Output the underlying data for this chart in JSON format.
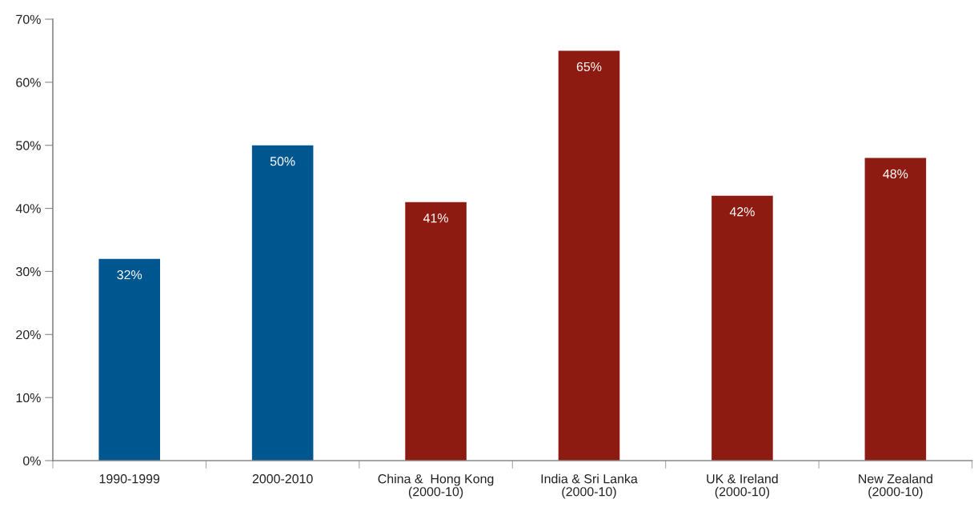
{
  "chart_data": {
    "type": "bar",
    "categories": [
      "1990-1999",
      "2000-2010",
      "China &  Hong Kong\n(2000-10)",
      "India & Sri Lanka\n(2000-10)",
      "UK & Ireland\n(2000-10)",
      "New Zealand\n(2000-10)"
    ],
    "values": [
      32,
      50,
      41,
      65,
      42,
      48
    ],
    "colors": [
      "#00568f",
      "#00568f",
      "#8e1b11",
      "#8e1b11",
      "#8e1b11",
      "#8e1b11"
    ],
    "value_labels": [
      "32%",
      "50%",
      "41%",
      "65%",
      "42%",
      "48%"
    ],
    "ylim": [
      0,
      70
    ],
    "yticks": [
      {
        "value": 0,
        "label": "0%"
      },
      {
        "value": 10,
        "label": "10%"
      },
      {
        "value": 20,
        "label": "20%"
      },
      {
        "value": 30,
        "label": "30%"
      },
      {
        "value": 40,
        "label": "40%"
      },
      {
        "value": 50,
        "label": "50%"
      },
      {
        "value": 60,
        "label": "60%"
      },
      {
        "value": 70,
        "label": "70%"
      }
    ],
    "grid": false
  }
}
